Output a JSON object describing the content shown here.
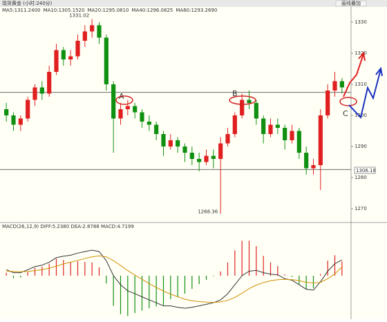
{
  "header": {
    "title": "现货黄金 (小时:240分)",
    "button": "画线叠加"
  },
  "chart_data": [
    {
      "type": "candlestick",
      "ma_legend": [
        {
          "text": "MA5:1311.2400",
          "color": "#333333"
        },
        {
          "text": "MA10:1305.1520",
          "color": "#c8a000"
        },
        {
          "text": "MA20:1295.0810",
          "color": "#a030a0"
        },
        {
          "text": "MA40:1296.0825",
          "color": "#2a8a2a"
        },
        {
          "text": "MA60:1293.2690",
          "color": "#6a6ad0"
        }
      ],
      "ohlc": [
        [
          1302,
          1304,
          1298,
          1300
        ],
        [
          1300,
          1301,
          1295,
          1297
        ],
        [
          1297,
          1300,
          1295,
          1299
        ],
        [
          1299,
          1306,
          1298,
          1305
        ],
        [
          1305,
          1310,
          1303,
          1309
        ],
        [
          1309,
          1311,
          1305,
          1307
        ],
        [
          1307,
          1316,
          1306,
          1314
        ],
        [
          1314,
          1323,
          1313,
          1321
        ],
        [
          1321,
          1322,
          1316,
          1318
        ],
        [
          1318,
          1321,
          1316,
          1319
        ],
        [
          1319,
          1326,
          1318,
          1324
        ],
        [
          1324,
          1329,
          1322,
          1327
        ],
        [
          1327,
          1331.02,
          1325,
          1329
        ],
        [
          1329,
          1330,
          1323,
          1325
        ],
        [
          1325,
          1326,
          1308,
          1310
        ],
        [
          1310,
          1311,
          1288,
          1299
        ],
        [
          1299,
          1304,
          1297,
          1302
        ],
        [
          1302,
          1305,
          1300,
          1303
        ],
        [
          1303,
          1304,
          1299,
          1301
        ],
        [
          1301,
          1302,
          1296,
          1298
        ],
        [
          1298,
          1300,
          1295,
          1297
        ],
        [
          1297,
          1298,
          1292,
          1294
        ],
        [
          1294,
          1295,
          1287,
          1290
        ],
        [
          1290,
          1294,
          1289,
          1292
        ],
        [
          1292,
          1293,
          1288,
          1290
        ],
        [
          1290,
          1291,
          1285,
          1288
        ],
        [
          1288,
          1290,
          1284,
          1286
        ],
        [
          1286,
          1288,
          1282,
          1285
        ],
        [
          1285,
          1289,
          1284,
          1287
        ],
        [
          1287,
          1289,
          1283,
          1286
        ],
        [
          1286,
          1293,
          1268.36,
          1291
        ],
        [
          1291,
          1296,
          1290,
          1294
        ],
        [
          1294,
          1301,
          1293,
          1300
        ],
        [
          1300,
          1307,
          1299,
          1305
        ],
        [
          1305,
          1308,
          1302,
          1304
        ],
        [
          1304,
          1305,
          1297,
          1299
        ],
        [
          1299,
          1300,
          1291,
          1294
        ],
        [
          1294,
          1299,
          1293,
          1297
        ],
        [
          1297,
          1299,
          1294,
          1296
        ],
        [
          1296,
          1297,
          1289,
          1292
        ],
        [
          1292,
          1297,
          1291,
          1295
        ],
        [
          1295,
          1296,
          1286,
          1288
        ],
        [
          1288,
          1290,
          1281,
          1283
        ],
        [
          1283,
          1286,
          1281,
          1284
        ],
        [
          1284,
          1302,
          1276,
          1300
        ],
        [
          1300,
          1310,
          1299,
          1308
        ],
        [
          1308,
          1314,
          1306,
          1311
        ],
        [
          1311,
          1312,
          1307,
          1309
        ]
      ],
      "up_color": "#e02020",
      "down_color": "#109010",
      "levels": [
        1307.4,
        1282.6
      ],
      "high_label": "1331.02",
      "low_label": "1268.36",
      "price_tag": "1306.18",
      "markers": [
        "A",
        "B",
        "C"
      ],
      "ylim": [
        1266,
        1334
      ],
      "yticks": [
        1270,
        1280,
        1290,
        1300,
        1310,
        1320,
        1330
      ]
    },
    {
      "type": "macd",
      "title": "MACD(26,12,9) DIFF:5.2380 DEA:2.8788 MACD:4.7199",
      "series": [
        {
          "name": "DIFF",
          "color": "#333333",
          "values": [
            2,
            1,
            1,
            2,
            3,
            3.5,
            4.5,
            6,
            6.5,
            6.8,
            7.5,
            8,
            8.5,
            8,
            5,
            0,
            -3,
            -5,
            -6,
            -7,
            -8,
            -9,
            -10,
            -10,
            -10.5,
            -10.8,
            -10.5,
            -10,
            -9.5,
            -9,
            -8,
            -6,
            -3,
            0,
            1.5,
            1.8,
            1,
            0.5,
            0.3,
            -1,
            -1.5,
            -3,
            -4.5,
            -4.8,
            -2,
            1.5,
            4,
            5.238
          ]
        },
        {
          "name": "DEA",
          "color": "#d09000",
          "values": [
            1.5,
            1.4,
            1.3,
            1.4,
            1.7,
            2,
            2.5,
            3.2,
            3.9,
            4.5,
            5.1,
            5.7,
            6.3,
            6.6,
            6.3,
            5,
            3.4,
            1.7,
            0.2,
            -1.2,
            -2.6,
            -3.9,
            -5.1,
            -6.1,
            -7,
            -7.8,
            -8.3,
            -8.6,
            -8.8,
            -8.9,
            -8.7,
            -8.2,
            -7.2,
            -5.8,
            -4.3,
            -3.1,
            -2.3,
            -1.7,
            -1.3,
            -1.2,
            -1.3,
            -1.6,
            -2.2,
            -2.4,
            -2.2,
            -1.0,
            0.6,
            2.8788
          ]
        }
      ],
      "histogram": [
        1,
        -0.8,
        -0.6,
        1.2,
        2.6,
        3,
        4,
        5.6,
        5.2,
        4.6,
        4.8,
        4.6,
        4.4,
        2.8,
        -2.6,
        -10,
        -12.8,
        -13.4,
        -12.4,
        -11.6,
        -10.8,
        -10.2,
        -9.8,
        -7.8,
        -7,
        -6,
        -4.4,
        -2.8,
        -1.4,
        -0.2,
        1.4,
        4.4,
        8.4,
        11.6,
        11.6,
        9.8,
        6.6,
        4.4,
        3.2,
        0.4,
        -0.4,
        -2.8,
        -4.6,
        -4.2,
        0.6,
        5,
        6.8,
        4.7199
      ],
      "ylim": [
        -14,
        14
      ]
    }
  ]
}
